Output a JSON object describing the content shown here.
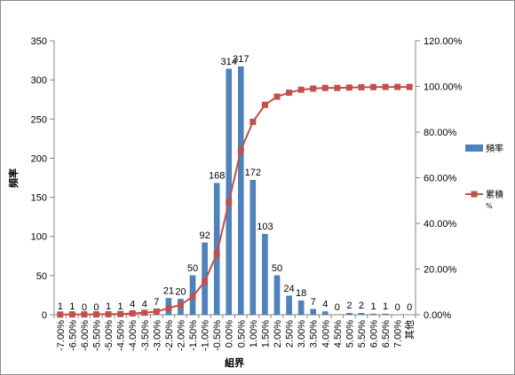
{
  "chart_data": {
    "type": "bar",
    "xlabel": "組界",
    "ylabel": "頻率",
    "ylim": [
      0,
      350
    ],
    "y_ticks": [
      0,
      50,
      100,
      150,
      200,
      250,
      300,
      350
    ],
    "y2lim": [
      0,
      120
    ],
    "y2_ticks": [
      "0.00%",
      "20.00%",
      "40.00%",
      "60.00%",
      "80.00%",
      "100.00%",
      "120.00%"
    ],
    "grid": false,
    "legend_position": "right",
    "categories": [
      "-7.00%",
      "-6.50%",
      "-6.00%",
      "-5.50%",
      "-5.00%",
      "-4.50%",
      "-4.00%",
      "-3.50%",
      "-3.00%",
      "-2.50%",
      "-2.00%",
      "-1.50%",
      "-1.00%",
      "-0.50%",
      "0.00%",
      "0.50%",
      "1.00%",
      "1.50%",
      "2.00%",
      "2.50%",
      "3.00%",
      "3.50%",
      "4.00%",
      "4.50%",
      "5.00%",
      "5.50%",
      "6.00%",
      "6.50%",
      "7.00%",
      "其他"
    ],
    "series": [
      {
        "name": "頻率",
        "kind": "bar",
        "axis": "left",
        "color": "#4f81bd",
        "values": [
          1,
          1,
          0,
          0,
          1,
          1,
          4,
          4,
          7,
          21,
          20,
          50,
          92,
          168,
          314,
          317,
          172,
          103,
          50,
          24,
          18,
          7,
          4,
          0,
          2,
          2,
          1,
          1,
          0,
          0
        ]
      },
      {
        "name": "累積 %",
        "kind": "line",
        "axis": "right",
        "color": "#c0504d",
        "values": [
          0.07,
          0.14,
          0.14,
          0.14,
          0.22,
          0.29,
          0.58,
          0.86,
          1.37,
          2.88,
          4.32,
          7.92,
          14.54,
          26.64,
          49.28,
          72.12,
          84.51,
          91.93,
          95.53,
          97.26,
          98.56,
          99.06,
          99.35,
          99.35,
          99.5,
          99.64,
          99.71,
          99.78,
          99.78,
          99.78
        ]
      }
    ],
    "legend": [
      {
        "label": "頻率",
        "marker": "bar"
      },
      {
        "label": "累積",
        "sub": "%",
        "marker": "line"
      }
    ]
  }
}
